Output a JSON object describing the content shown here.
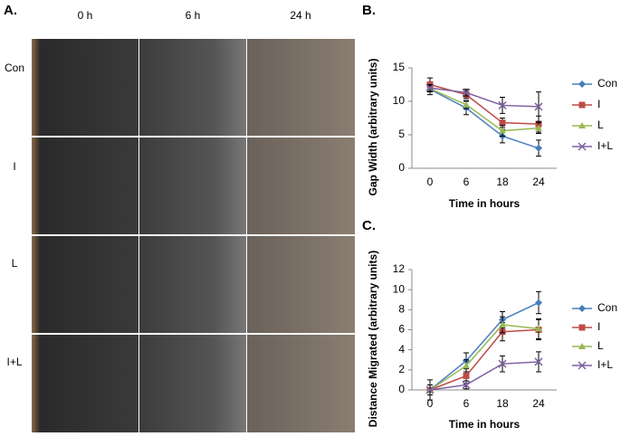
{
  "panel_a": {
    "label": "A.",
    "columns": [
      "0 h",
      "6 h",
      "24 h"
    ],
    "rows": [
      "Con",
      "I",
      "L",
      "I+L"
    ]
  },
  "chart_data": [
    {
      "type": "line",
      "panel_label": "B.",
      "xlabel": "Time in hours",
      "ylabel": "Gap Width (arbitrary units)",
      "categories": [
        "0",
        "6",
        "18",
        "24"
      ],
      "ylim": [
        0,
        15
      ],
      "yticks": [
        0,
        5,
        10,
        15
      ],
      "grid": false,
      "legend": "right",
      "series": [
        {
          "name": "Con",
          "color": "#4a7ebb",
          "marker": "diamond",
          "values": [
            11.8,
            9.0,
            4.8,
            3.0
          ],
          "errors": [
            0.8,
            1.0,
            1.0,
            1.2
          ]
        },
        {
          "name": "I",
          "color": "#be4b48",
          "marker": "square",
          "values": [
            12.5,
            11.0,
            6.8,
            6.6
          ],
          "errors": [
            1.0,
            0.6,
            0.7,
            1.2
          ]
        },
        {
          "name": "L",
          "color": "#98b954",
          "marker": "triangle",
          "values": [
            11.9,
            9.5,
            5.6,
            6.0
          ],
          "errors": [
            0.5,
            0.6,
            0.8,
            0.8
          ]
        },
        {
          "name": "I+L",
          "color": "#7d60a0",
          "marker": "x",
          "values": [
            12.0,
            11.3,
            9.4,
            9.2
          ],
          "errors": [
            0.5,
            0.5,
            1.2,
            2.2
          ]
        }
      ]
    },
    {
      "type": "line",
      "panel_label": "C.",
      "xlabel": "Time in hours",
      "ylabel": "Distance Migrated (arbitrary units)",
      "categories": [
        "0",
        "6",
        "18",
        "24"
      ],
      "ylim": [
        0,
        12
      ],
      "yticks": [
        0,
        2,
        4,
        6,
        8,
        10,
        12
      ],
      "grid": false,
      "legend": "right",
      "series": [
        {
          "name": "Con",
          "color": "#4a7ebb",
          "marker": "diamond",
          "values": [
            0,
            2.9,
            7.0,
            8.7
          ],
          "errors": [
            0.5,
            0.8,
            0.8,
            1.1
          ]
        },
        {
          "name": "I",
          "color": "#be4b48",
          "marker": "square",
          "values": [
            0,
            1.4,
            5.8,
            6.0
          ],
          "errors": [
            0.5,
            0.8,
            0.9,
            1.0
          ]
        },
        {
          "name": "L",
          "color": "#98b954",
          "marker": "triangle",
          "values": [
            0,
            2.4,
            6.5,
            6.1
          ],
          "errors": [
            0.5,
            0.6,
            0.8,
            1.0
          ]
        },
        {
          "name": "I+L",
          "color": "#7d60a0",
          "marker": "x",
          "values": [
            0,
            0.5,
            2.6,
            2.8
          ],
          "errors": [
            1.0,
            0.4,
            0.8,
            1.0
          ]
        }
      ]
    }
  ]
}
